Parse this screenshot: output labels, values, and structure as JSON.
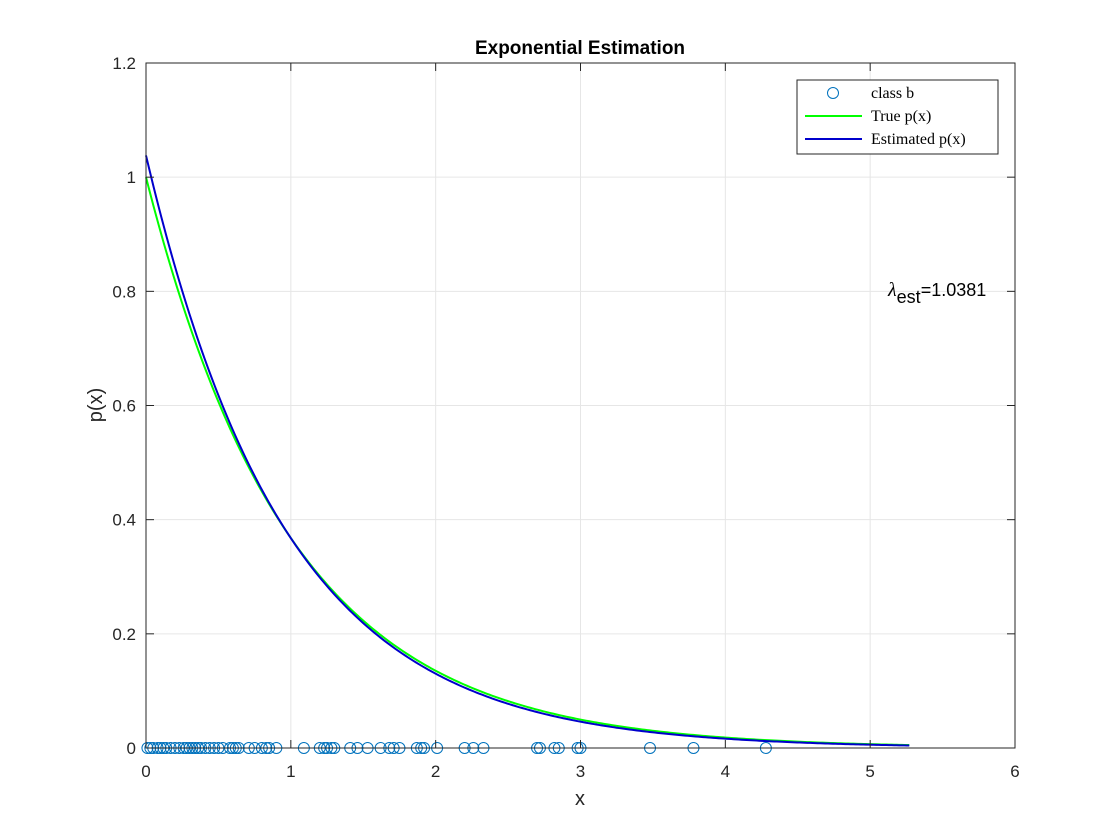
{
  "chart_data": {
    "type": "line",
    "title": "Exponential Estimation",
    "xlabel": "x",
    "ylabel": "p(x)",
    "xlim": [
      0,
      6
    ],
    "ylim": [
      0,
      1.2
    ],
    "xticks": [
      0,
      1,
      2,
      3,
      4,
      5,
      6
    ],
    "yticks": [
      0,
      0.2,
      0.4,
      0.6,
      0.8,
      1,
      1.2
    ],
    "xtick_labels": [
      "0",
      "1",
      "2",
      "3",
      "4",
      "5",
      "6"
    ],
    "ytick_labels": [
      "0",
      "0.2",
      "0.4",
      "0.6",
      "0.8",
      "1",
      "1.2"
    ],
    "grid": true,
    "legend_placement": "top-right",
    "colors": {
      "samples": "#0072BD",
      "true": "#00FF00",
      "estimated": "#0000CC"
    },
    "series": [
      {
        "name": "class b",
        "kind": "scatter",
        "marker": "circle",
        "x": [
          0.01,
          0.03,
          0.05,
          0.08,
          0.1,
          0.12,
          0.14,
          0.17,
          0.2,
          0.23,
          0.26,
          0.28,
          0.3,
          0.32,
          0.34,
          0.36,
          0.38,
          0.41,
          0.44,
          0.47,
          0.5,
          0.53,
          0.58,
          0.6,
          0.62,
          0.64,
          0.71,
          0.75,
          0.8,
          0.83,
          0.85,
          0.9,
          1.09,
          1.2,
          1.23,
          1.25,
          1.28,
          1.3,
          1.41,
          1.46,
          1.53,
          1.62,
          1.68,
          1.71,
          1.75,
          1.87,
          1.9,
          1.92,
          2.01,
          2.2,
          2.26,
          2.33,
          2.7,
          2.72,
          2.82,
          2.85,
          2.98,
          3.0,
          3.48,
          3.78,
          4.28
        ],
        "y_value": 0
      },
      {
        "name": "True p(x)",
        "kind": "line",
        "function": "lambda*exp(-lambda*x)",
        "lambda": 1.0,
        "x_range": [
          0,
          5.27
        ]
      },
      {
        "name": "Estimated p(x)",
        "kind": "line",
        "function": "lambda*exp(-lambda*x)",
        "lambda": 1.0381,
        "x_range": [
          0,
          5.27
        ]
      }
    ],
    "annotation": {
      "symbol": "λ",
      "subscript": "est",
      "text": "=1.0381",
      "x": 5.15,
      "y": 0.8
    }
  }
}
